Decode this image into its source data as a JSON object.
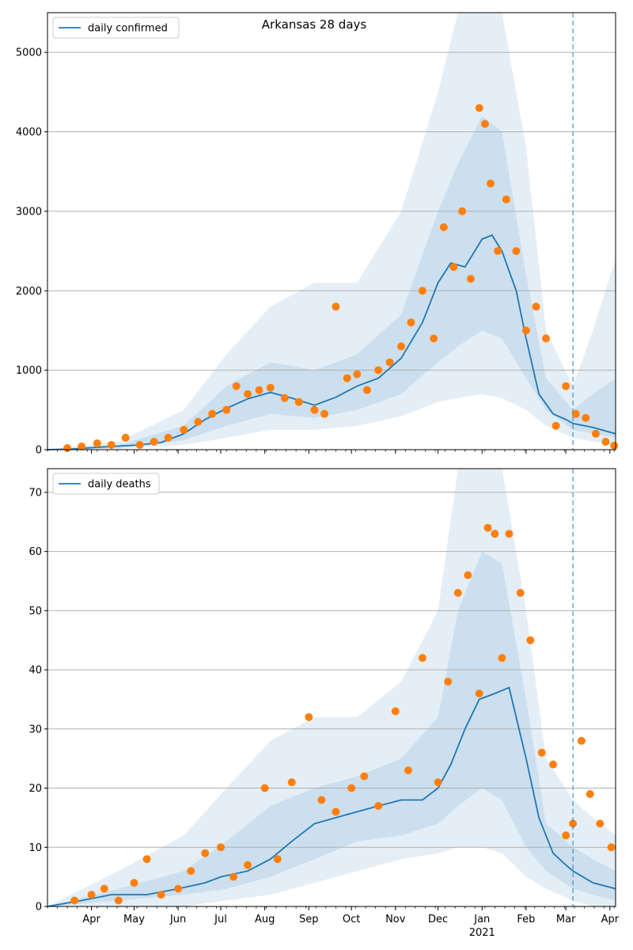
{
  "figure": {
    "title": "Arkansas 28 days",
    "colors": {
      "line": "#1f77b4",
      "points": "#ff7f0e",
      "band": "#1f77b4",
      "vline": "#1f77b4",
      "grid": "#b0b0b0"
    }
  },
  "chart_data": [
    {
      "type": "line",
      "panel": "top",
      "title": "Arkansas 28 days",
      "legend": [
        "daily confirmed"
      ],
      "legend_position": "upper-left",
      "x_type": "date",
      "xlim": [
        "2020-03-01",
        "2021-04-05"
      ],
      "ylim": [
        0,
        5500
      ],
      "y_ticks": [
        0,
        1000,
        2000,
        3000,
        4000,
        5000
      ],
      "grid": "horizontal",
      "vline_date": "2021-03-06",
      "series": [
        {
          "name": "daily confirmed",
          "kind": "line",
          "dates": [
            "2020-03-01",
            "2020-03-20",
            "2020-04-05",
            "2020-04-20",
            "2020-05-05",
            "2020-05-20",
            "2020-06-05",
            "2020-06-20",
            "2020-07-05",
            "2020-07-20",
            "2020-08-05",
            "2020-08-20",
            "2020-09-05",
            "2020-09-20",
            "2020-10-05",
            "2020-10-20",
            "2020-11-05",
            "2020-11-20",
            "2020-12-01",
            "2020-12-10",
            "2020-12-20",
            "2021-01-01",
            "2021-01-08",
            "2021-01-15",
            "2021-01-25",
            "2021-02-01",
            "2021-02-10",
            "2021-02-20",
            "2021-03-01",
            "2021-03-06",
            "2021-03-20",
            "2021-04-05"
          ],
          "values": [
            0,
            10,
            30,
            45,
            60,
            90,
            200,
            380,
            520,
            640,
            720,
            650,
            560,
            660,
            800,
            900,
            1150,
            1600,
            2100,
            2350,
            2300,
            2650,
            2700,
            2500,
            2000,
            1400,
            700,
            450,
            380,
            330,
            280,
            200
          ]
        },
        {
          "name": "band_95",
          "kind": "band",
          "dates": [
            "2020-03-01",
            "2020-04-20",
            "2020-06-05",
            "2020-07-05",
            "2020-08-05",
            "2020-09-05",
            "2020-10-05",
            "2020-11-05",
            "2020-12-01",
            "2020-12-15",
            "2021-01-01",
            "2021-01-15",
            "2021-02-01",
            "2021-02-15",
            "2021-03-06",
            "2021-03-20",
            "2021-04-05"
          ],
          "low": [
            0,
            10,
            60,
            150,
            250,
            250,
            300,
            420,
            600,
            650,
            700,
            650,
            500,
            300,
            150,
            100,
            60
          ],
          "high": [
            0,
            100,
            500,
            1200,
            1800,
            2100,
            2100,
            3000,
            4500,
            5500,
            5500,
            5500,
            3800,
            1500,
            800,
            1500,
            2400
          ]
        },
        {
          "name": "band_68",
          "kind": "band",
          "dates": [
            "2020-03-01",
            "2020-04-20",
            "2020-06-05",
            "2020-07-05",
            "2020-08-05",
            "2020-09-05",
            "2020-10-05",
            "2020-11-05",
            "2020-12-01",
            "2020-12-15",
            "2021-01-01",
            "2021-01-15",
            "2021-02-01",
            "2021-02-15",
            "2021-03-06",
            "2021-03-20",
            "2021-04-05"
          ],
          "low": [
            0,
            20,
            120,
            300,
            450,
            400,
            500,
            700,
            1100,
            1300,
            1500,
            1400,
            900,
            500,
            250,
            200,
            150
          ],
          "high": [
            0,
            60,
            300,
            800,
            1100,
            1000,
            1200,
            1700,
            3000,
            3600,
            4200,
            4000,
            2200,
            900,
            500,
            700,
            900
          ]
        },
        {
          "name": "observed",
          "kind": "scatter",
          "dates": [
            "2020-03-15",
            "2020-03-25",
            "2020-04-05",
            "2020-04-15",
            "2020-04-25",
            "2020-05-05",
            "2020-05-15",
            "2020-05-25",
            "2020-06-05",
            "2020-06-15",
            "2020-06-25",
            "2020-07-05",
            "2020-07-12",
            "2020-07-20",
            "2020-07-28",
            "2020-08-05",
            "2020-08-15",
            "2020-08-25",
            "2020-09-05",
            "2020-09-12",
            "2020-09-20",
            "2020-09-28",
            "2020-10-05",
            "2020-10-12",
            "2020-10-20",
            "2020-10-28",
            "2020-11-05",
            "2020-11-12",
            "2020-11-20",
            "2020-11-28",
            "2020-12-05",
            "2020-12-12",
            "2020-12-18",
            "2020-12-24",
            "2020-12-30",
            "2021-01-03",
            "2021-01-07",
            "2021-01-12",
            "2021-01-18",
            "2021-01-25",
            "2021-02-01",
            "2021-02-08",
            "2021-02-15",
            "2021-02-22",
            "2021-03-01",
            "2021-03-08",
            "2021-03-15",
            "2021-03-22",
            "2021-03-29",
            "2021-04-04"
          ],
          "values": [
            20,
            40,
            80,
            60,
            150,
            60,
            100,
            150,
            250,
            350,
            450,
            500,
            800,
            700,
            750,
            780,
            650,
            600,
            500,
            450,
            1800,
            900,
            950,
            750,
            1000,
            1100,
            1300,
            1600,
            2000,
            1400,
            2800,
            2300,
            3000,
            2150,
            4300,
            4100,
            3350,
            2500,
            3150,
            2500,
            1500,
            1800,
            1400,
            300,
            800,
            450,
            400,
            200,
            100,
            50
          ]
        }
      ]
    },
    {
      "type": "line",
      "panel": "bottom",
      "legend": [
        "daily deaths"
      ],
      "legend_position": "upper-left",
      "x_type": "date",
      "xlim": [
        "2020-03-01",
        "2021-04-05"
      ],
      "ylim": [
        0,
        74
      ],
      "y_ticks": [
        0,
        10,
        20,
        30,
        40,
        50,
        60,
        70
      ],
      "x_ticks": [
        "Apr",
        "May",
        "Jun",
        "Jul",
        "Aug",
        "Sep",
        "Oct",
        "Nov",
        "Dec",
        "Jan",
        "Feb",
        "Mar",
        "Apr"
      ],
      "x_tick_dates": [
        "2020-04-01",
        "2020-05-01",
        "2020-06-01",
        "2020-07-01",
        "2020-08-01",
        "2020-09-01",
        "2020-10-01",
        "2020-11-01",
        "2020-12-01",
        "2021-01-01",
        "2021-02-01",
        "2021-03-01",
        "2021-04-01"
      ],
      "x_year_label": "2021",
      "grid": "horizontal",
      "vline_date": "2021-03-06",
      "series": [
        {
          "name": "daily deaths",
          "kind": "line",
          "dates": [
            "2020-03-01",
            "2020-03-25",
            "2020-04-15",
            "2020-05-10",
            "2020-06-01",
            "2020-06-20",
            "2020-07-01",
            "2020-07-20",
            "2020-08-05",
            "2020-08-20",
            "2020-09-05",
            "2020-09-20",
            "2020-10-05",
            "2020-10-20",
            "2020-11-05",
            "2020-11-20",
            "2020-12-01",
            "2020-12-10",
            "2020-12-20",
            "2020-12-30",
            "2021-01-10",
            "2021-01-20",
            "2021-02-01",
            "2021-02-10",
            "2021-02-20",
            "2021-03-01",
            "2021-03-06",
            "2021-03-20",
            "2021-04-05"
          ],
          "values": [
            0,
            1,
            2,
            2,
            3,
            4,
            5,
            6,
            8,
            11,
            14,
            15,
            16,
            17,
            18,
            18,
            20,
            24,
            30,
            35,
            36,
            37,
            25,
            15,
            9,
            7,
            6,
            4,
            3
          ]
        },
        {
          "name": "band_95",
          "kind": "band",
          "dates": [
            "2020-03-01",
            "2020-04-20",
            "2020-06-05",
            "2020-07-05",
            "2020-08-05",
            "2020-09-05",
            "2020-10-05",
            "2020-11-05",
            "2020-12-01",
            "2020-12-15",
            "2021-01-01",
            "2021-01-15",
            "2021-02-01",
            "2021-02-15",
            "2021-03-06",
            "2021-03-20",
            "2021-04-05"
          ],
          "low": [
            0,
            0,
            0,
            1,
            2,
            4,
            6,
            8,
            9,
            10,
            10,
            9,
            5,
            3,
            1,
            0,
            0
          ],
          "high": [
            0,
            6,
            12,
            20,
            28,
            32,
            32,
            38,
            50,
            74,
            74,
            74,
            50,
            25,
            18,
            15,
            12
          ]
        },
        {
          "name": "band_68",
          "kind": "band",
          "dates": [
            "2020-03-01",
            "2020-04-20",
            "2020-06-05",
            "2020-07-05",
            "2020-08-05",
            "2020-09-05",
            "2020-10-05",
            "2020-11-05",
            "2020-12-01",
            "2020-12-15",
            "2021-01-01",
            "2021-01-15",
            "2021-02-01",
            "2021-02-15",
            "2021-03-06",
            "2021-03-20",
            "2021-04-05"
          ],
          "low": [
            0,
            1,
            2,
            3,
            5,
            8,
            11,
            12,
            14,
            17,
            20,
            18,
            10,
            6,
            3,
            2,
            1
          ],
          "high": [
            0,
            3,
            6,
            11,
            17,
            20,
            22,
            25,
            32,
            50,
            60,
            58,
            35,
            14,
            10,
            8,
            6
          ]
        },
        {
          "name": "observed",
          "kind": "scatter",
          "dates": [
            "2020-03-20",
            "2020-04-01",
            "2020-04-10",
            "2020-04-20",
            "2020-05-01",
            "2020-05-10",
            "2020-05-20",
            "2020-06-01",
            "2020-06-10",
            "2020-06-20",
            "2020-07-01",
            "2020-07-10",
            "2020-07-20",
            "2020-08-01",
            "2020-08-10",
            "2020-08-20",
            "2020-09-01",
            "2020-09-10",
            "2020-09-20",
            "2020-10-01",
            "2020-10-10",
            "2020-10-20",
            "2020-11-01",
            "2020-11-10",
            "2020-11-20",
            "2020-12-01",
            "2020-12-08",
            "2020-12-15",
            "2020-12-22",
            "2020-12-30",
            "2021-01-05",
            "2021-01-10",
            "2021-01-15",
            "2021-01-20",
            "2021-01-28",
            "2021-02-04",
            "2021-02-12",
            "2021-02-20",
            "2021-03-01",
            "2021-03-06",
            "2021-03-12",
            "2021-03-18",
            "2021-03-25",
            "2021-04-02"
          ],
          "values": [
            1,
            2,
            3,
            1,
            4,
            8,
            2,
            3,
            6,
            9,
            10,
            5,
            7,
            20,
            8,
            21,
            32,
            18,
            16,
            20,
            22,
            17,
            33,
            23,
            42,
            21,
            38,
            53,
            56,
            36,
            64,
            63,
            42,
            63,
            53,
            45,
            26,
            24,
            12,
            14,
            28,
            19,
            14,
            10
          ]
        }
      ]
    }
  ]
}
